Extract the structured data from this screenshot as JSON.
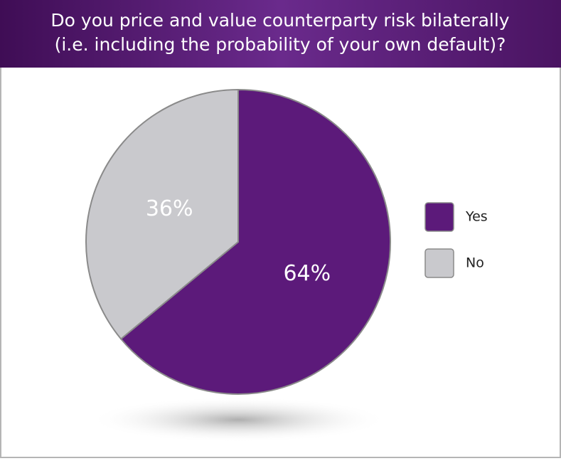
{
  "chart_data": {
    "type": "pie",
    "title": [
      "Do you price and value counterparty risk bilaterally",
      "(i.e. including the probability of your own default)?"
    ],
    "categories": [
      "Yes",
      "No"
    ],
    "values": [
      64,
      36
    ],
    "value_labels": [
      "64%",
      "36%"
    ],
    "colors": [
      "#5c1a7a",
      "#c9c9cd"
    ],
    "legend": "right"
  }
}
